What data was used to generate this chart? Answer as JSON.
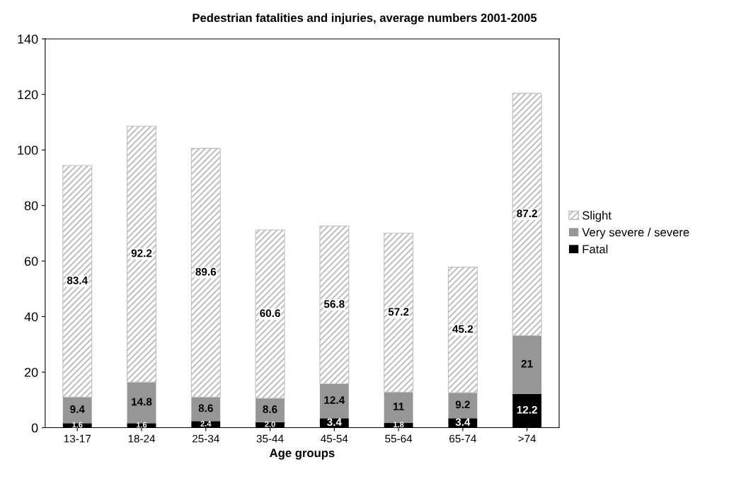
{
  "chart_data": {
    "type": "bar",
    "title": "Pedestrian fatalities and injuries, average numbers 2001-2005",
    "xlabel": "Age groups",
    "categories": [
      "13-17",
      "18-24",
      "25-34",
      "35-44",
      "45-54",
      "55-64",
      "65-74",
      ">74"
    ],
    "stacked": true,
    "ylim": [
      0,
      140
    ],
    "yticks": [
      0,
      20,
      40,
      60,
      80,
      100,
      120,
      140
    ],
    "grid": false,
    "legend": "right",
    "series": [
      {
        "name": "Fatal",
        "color": "#000000",
        "values": [
          1.6,
          1.6,
          2.4,
          2.0,
          3.4,
          1.8,
          3.4,
          12.2
        ],
        "value_labels": [
          "1.6",
          "1.6",
          "2.4",
          "2.0",
          "3.4",
          "1.8",
          "3.4",
          "12.2"
        ]
      },
      {
        "name": "Very severe / severe",
        "color": "#969696",
        "values": [
          9.4,
          14.8,
          8.6,
          8.6,
          12.4,
          11,
          9.2,
          21
        ],
        "value_labels": [
          "9.4",
          "14.8",
          "8.6",
          "8.6",
          "12.4",
          "11",
          "9.2",
          "21"
        ]
      },
      {
        "name": "Slight",
        "color": "#c0c0c0",
        "values": [
          83.4,
          92.2,
          89.6,
          60.6,
          56.8,
          57.2,
          45.2,
          87.2
        ],
        "value_labels": [
          "83.4",
          "92.2",
          "89.6",
          "60.6",
          "56.8",
          "57.2",
          "45.2",
          "87.2"
        ]
      }
    ]
  }
}
